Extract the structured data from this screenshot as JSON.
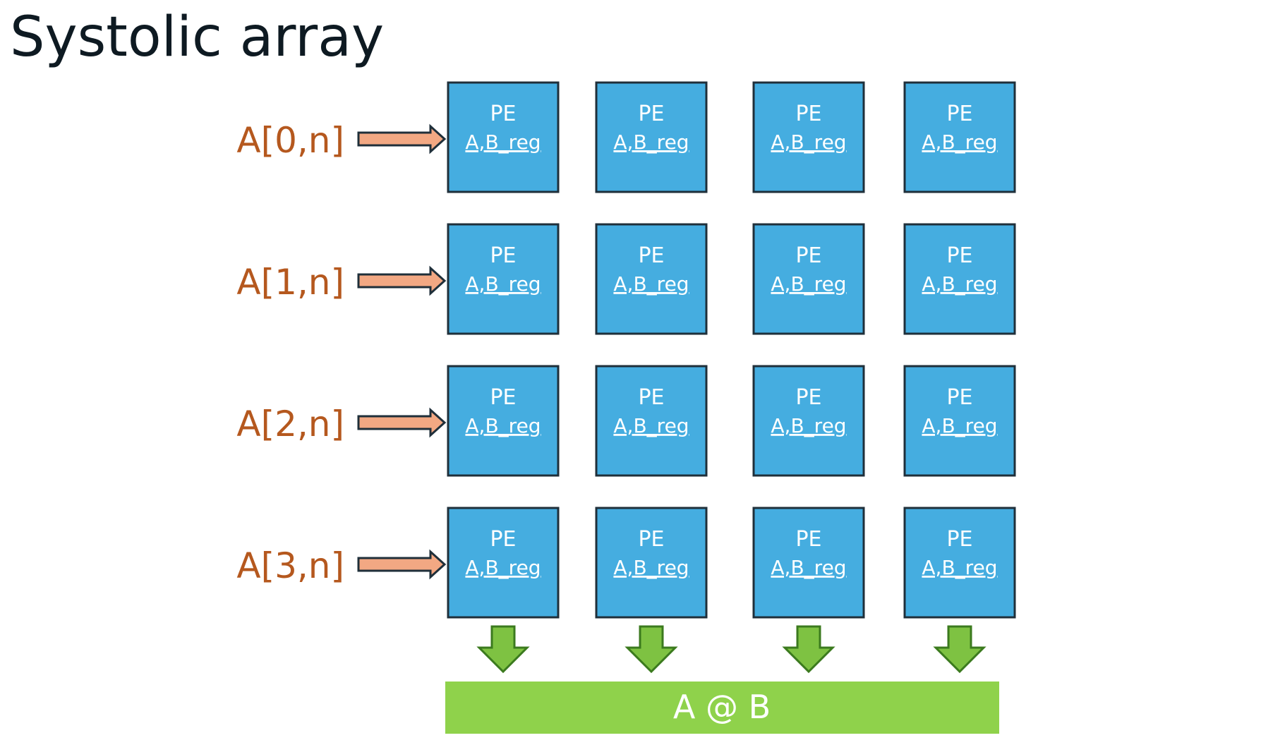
{
  "title": "Systolic array",
  "rows": [
    {
      "input_label": "A[0,n]"
    },
    {
      "input_label": "A[1,n]"
    },
    {
      "input_label": "A[2,n]"
    },
    {
      "input_label": "A[3,n]"
    }
  ],
  "columns": 4,
  "pe": {
    "title": "PE",
    "subtitle": "A,B_reg"
  },
  "result_label": "A @ B",
  "colors": {
    "pe_fill": "#45ade0",
    "pe_border": "#1f2f3a",
    "input_arrow_fill": "#f2a883",
    "input_arrow_stroke": "#1f2f3a",
    "row_label": "#b5581e",
    "output_arrow_fill": "#7ec242",
    "output_arrow_stroke": "#3b7a1e",
    "result_bar": "#8fd24b",
    "text_white": "#ffffff",
    "title_text": "#0e1a22"
  }
}
